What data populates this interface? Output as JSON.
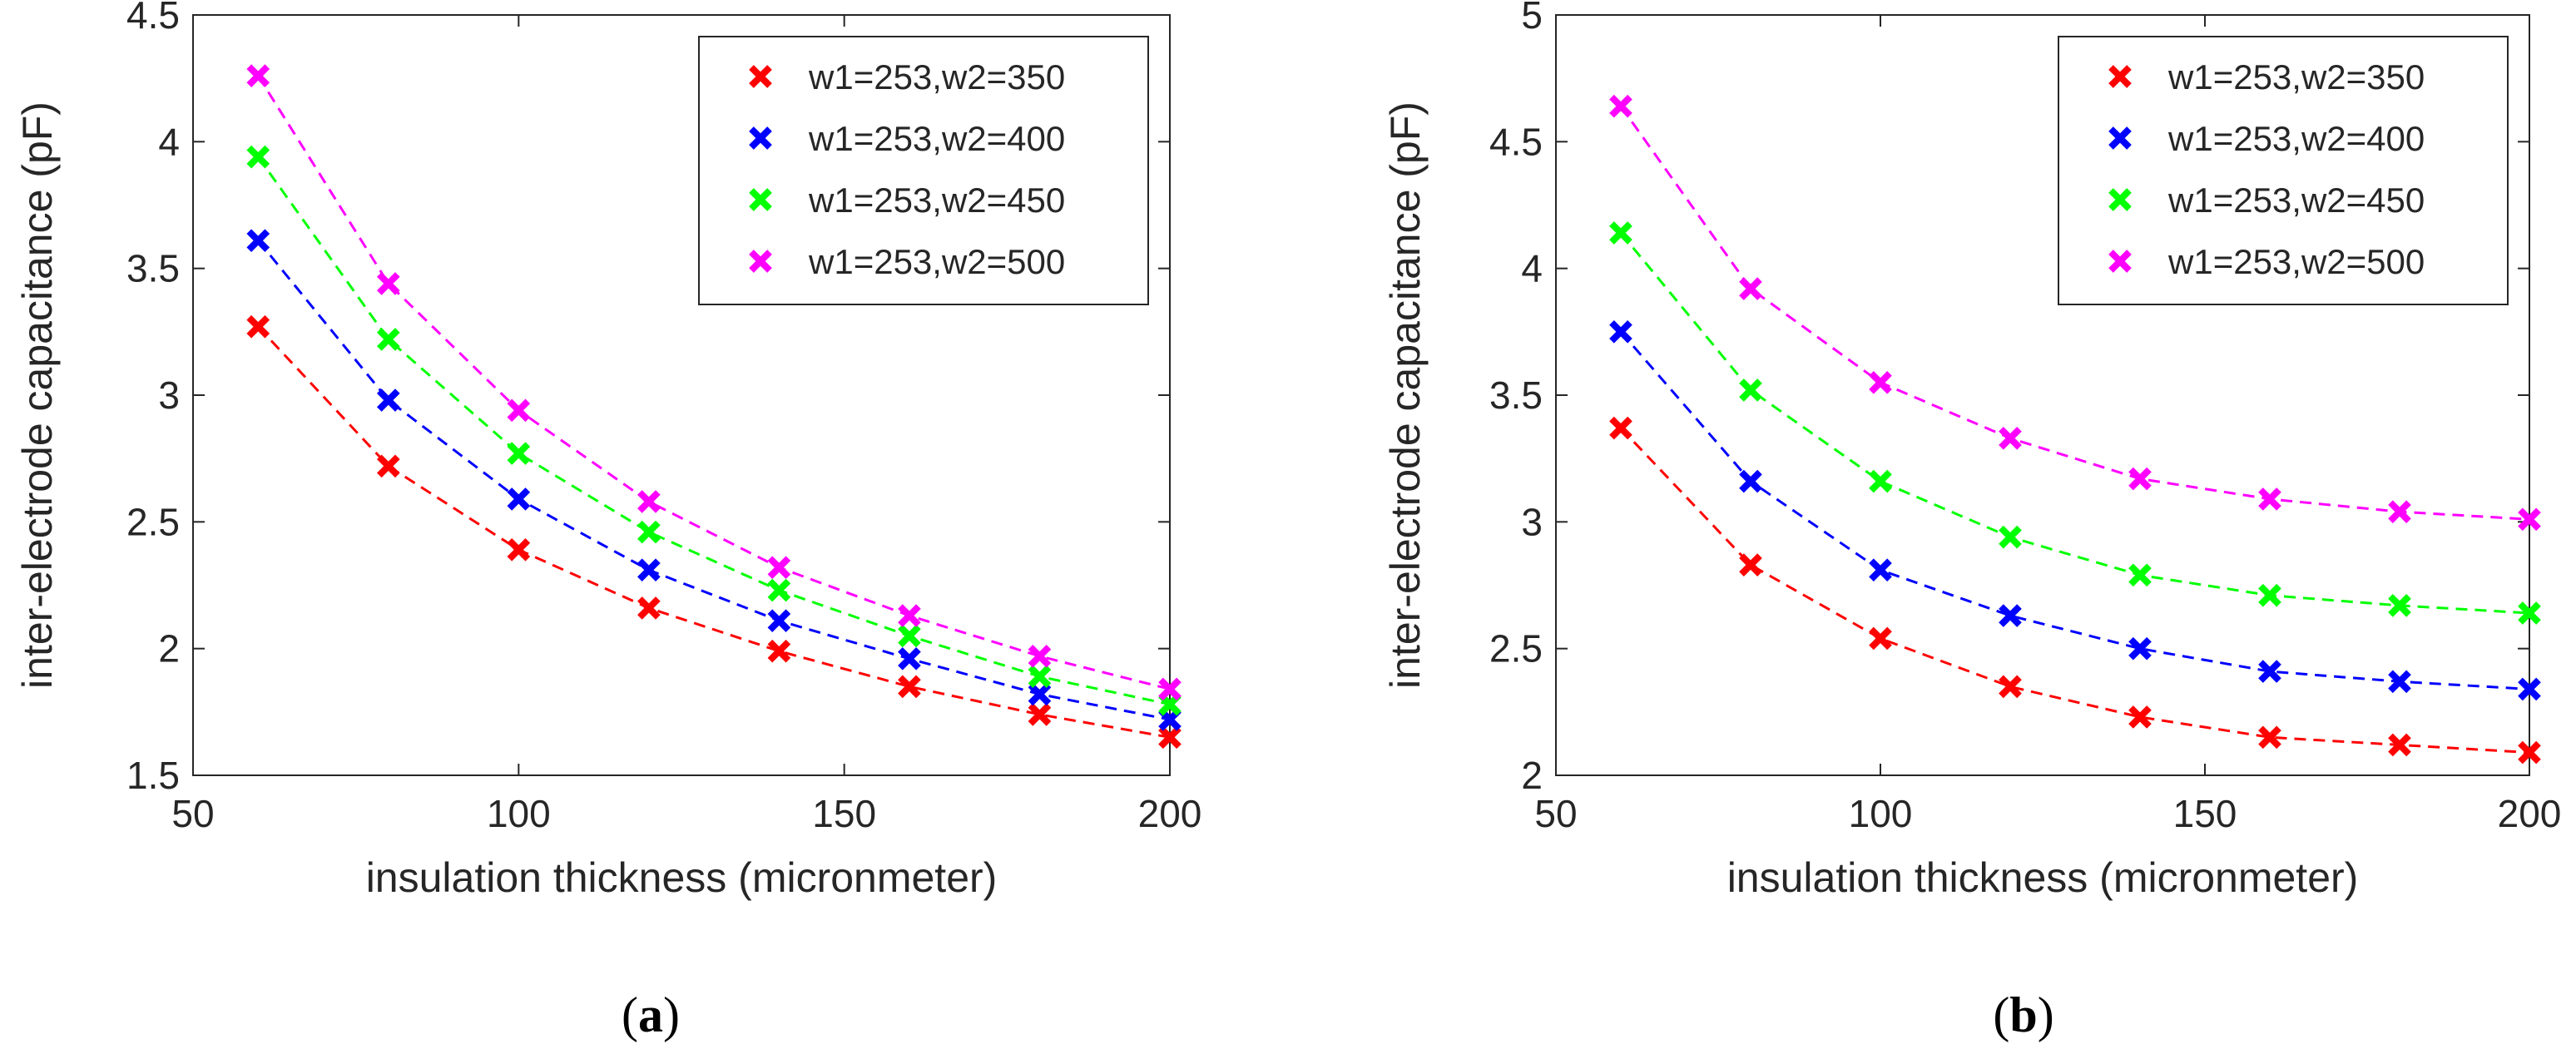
{
  "figure": {
    "panel_labels": [
      "(a)",
      "(b)"
    ],
    "panel_label_parts": [
      {
        "open": "(",
        "letter": "a",
        "close": ")"
      },
      {
        "open": "(",
        "letter": "b",
        "close": ")"
      }
    ]
  },
  "chart_data": [
    {
      "type": "line",
      "line_style": "dashed",
      "marker": "x",
      "title": "",
      "xlabel": "insulation thickness (micronmeter)",
      "ylabel": "inter-electrode capacitance (pF)",
      "xlim": [
        50,
        200
      ],
      "ylim": [
        1.5,
        4.5
      ],
      "xticks": [
        50,
        100,
        150,
        200
      ],
      "yticks": [
        1.5,
        2,
        2.5,
        3,
        3.5,
        4,
        4.5
      ],
      "xtick_labels": [
        "50",
        "100",
        "150",
        "200"
      ],
      "ytick_labels": [
        "1.5",
        "2",
        "2.5",
        "3",
        "3.5",
        "4",
        "4.5"
      ],
      "grid": false,
      "legend_position": "top-right",
      "x": [
        60,
        80,
        100,
        120,
        140,
        160,
        180,
        200
      ],
      "series": [
        {
          "name": "w1=253,w2=350",
          "color": "#ff0000",
          "values": [
            3.27,
            2.72,
            2.39,
            2.16,
            1.99,
            1.85,
            1.74,
            1.65
          ]
        },
        {
          "name": "w1=253,w2=400",
          "color": "#0000ff",
          "values": [
            3.61,
            2.98,
            2.59,
            2.31,
            2.11,
            1.96,
            1.82,
            1.72
          ]
        },
        {
          "name": "w1=253,w2=450",
          "color": "#00ff00",
          "values": [
            3.94,
            3.22,
            2.77,
            2.46,
            2.23,
            2.05,
            1.89,
            1.78
          ]
        },
        {
          "name": "w1=253,w2=500",
          "color": "#ff00ff",
          "values": [
            4.26,
            3.44,
            2.94,
            2.58,
            2.32,
            2.13,
            1.97,
            1.84
          ]
        }
      ]
    },
    {
      "type": "line",
      "line_style": "dashed",
      "marker": "x",
      "title": "",
      "xlabel": "insulation thickness (micronmeter)",
      "ylabel": "inter-electrode capacitance (pF)",
      "xlim": [
        50,
        200
      ],
      "ylim": [
        2,
        5
      ],
      "xticks": [
        50,
        100,
        150,
        200
      ],
      "yticks": [
        2,
        2.5,
        3,
        3.5,
        4,
        4.5,
        5
      ],
      "xtick_labels": [
        "50",
        "100",
        "150",
        "200"
      ],
      "ytick_labels": [
        "2",
        "2.5",
        "3",
        "3.5",
        "4",
        "4.5",
        "5"
      ],
      "grid": false,
      "legend_position": "top-right",
      "x": [
        60,
        80,
        100,
        120,
        140,
        160,
        180,
        200
      ],
      "series": [
        {
          "name": "w1=253,w2=350",
          "color": "#ff0000",
          "values": [
            3.37,
            2.83,
            2.54,
            2.35,
            2.23,
            2.15,
            2.12,
            2.09
          ]
        },
        {
          "name": "w1=253,w2=400",
          "color": "#0000ff",
          "values": [
            3.75,
            3.16,
            2.81,
            2.63,
            2.5,
            2.41,
            2.37,
            2.34
          ]
        },
        {
          "name": "w1=253,w2=450",
          "color": "#00ff00",
          "values": [
            4.14,
            3.52,
            3.16,
            2.94,
            2.79,
            2.71,
            2.67,
            2.64
          ]
        },
        {
          "name": "w1=253,w2=500",
          "color": "#ff00ff",
          "values": [
            4.64,
            3.92,
            3.55,
            3.33,
            3.17,
            3.09,
            3.04,
            3.01
          ]
        }
      ]
    }
  ]
}
